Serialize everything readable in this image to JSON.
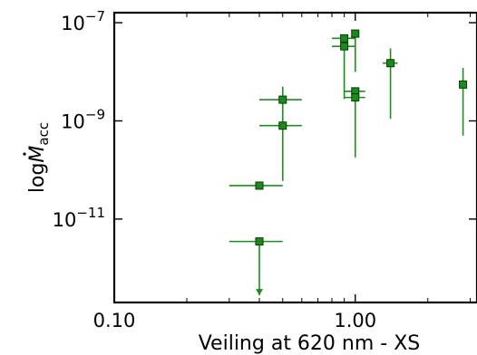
{
  "chart_data": {
    "type": "scatter",
    "xlabel": "Veiling at 620 nm - XS",
    "ylabel_main": "log",
    "ylabel_symbol": "M",
    "ylabel_sub": "acc",
    "x_scale": "log",
    "y_scale": "log",
    "xlim": [
      0.1,
      3.2
    ],
    "ylim": [
      2e-13,
      1.6e-07
    ],
    "x_ticks": [
      {
        "value": 0.1,
        "label": "0.10"
      },
      {
        "value": 1.0,
        "label": "1.00"
      }
    ],
    "y_ticks": [
      {
        "value": 1e-11,
        "label_base": "10",
        "label_exp": "−11"
      },
      {
        "value": 1e-09,
        "label_base": "10",
        "label_exp": "−9"
      },
      {
        "value": 1e-07,
        "label_base": "10",
        "label_exp": "−7"
      }
    ],
    "grid": false,
    "marker_color": "#1a8a1a",
    "marker_edge": "#0a3a0a",
    "line_color": "#1e8c1e",
    "points": [
      {
        "x": 0.4,
        "y": 4.8e-11,
        "x_lo": 0.3,
        "x_hi": 0.5,
        "y_lo": 4.8e-11,
        "y_hi": 4.8e-11,
        "upper_limit": false
      },
      {
        "x": 0.4,
        "y": 3.5e-12,
        "x_lo": 0.3,
        "x_hi": 0.5,
        "y_lo": 2.8e-13,
        "y_hi": 3.5e-12,
        "upper_limit": true
      },
      {
        "x": 0.5,
        "y": 2.7e-09,
        "x_lo": 0.4,
        "x_hi": 0.6,
        "y_lo": 8e-10,
        "y_hi": 5e-09,
        "upper_limit": false
      },
      {
        "x": 0.5,
        "y": 8e-10,
        "x_lo": 0.4,
        "x_hi": 0.6,
        "y_lo": 6e-11,
        "y_hi": 8e-10,
        "upper_limit": false
      },
      {
        "x": 0.9,
        "y": 4.8e-08,
        "x_lo": 0.8,
        "x_hi": 1.0,
        "y_lo": 4.8e-08,
        "y_hi": 4.8e-08,
        "upper_limit": false
      },
      {
        "x": 0.9,
        "y": 3.3e-08,
        "x_lo": 0.8,
        "x_hi": 1.0,
        "y_lo": 2.8e-09,
        "y_hi": 3.3e-08,
        "upper_limit": false
      },
      {
        "x": 1.0,
        "y": 6e-08,
        "x_lo": 1.0,
        "x_hi": 1.0,
        "y_lo": 1e-08,
        "y_hi": 6e-08,
        "upper_limit": false
      },
      {
        "x": 1.0,
        "y": 4e-09,
        "x_lo": 0.9,
        "x_hi": 1.1,
        "y_lo": 1.8e-10,
        "y_hi": 4e-09,
        "upper_limit": false
      },
      {
        "x": 1.0,
        "y": 3e-09,
        "x_lo": 0.9,
        "x_hi": 1.1,
        "y_lo": 3e-09,
        "y_hi": 3e-09,
        "upper_limit": false
      },
      {
        "x": 1.4,
        "y": 1.5e-08,
        "x_lo": 1.3,
        "x_hi": 1.5,
        "y_lo": 1.1e-09,
        "y_hi": 3e-08,
        "upper_limit": false
      },
      {
        "x": 2.8,
        "y": 5.5e-09,
        "x_lo": 2.8,
        "x_hi": 2.8,
        "y_lo": 5e-10,
        "y_hi": 1.2e-08,
        "upper_limit": false
      }
    ]
  }
}
